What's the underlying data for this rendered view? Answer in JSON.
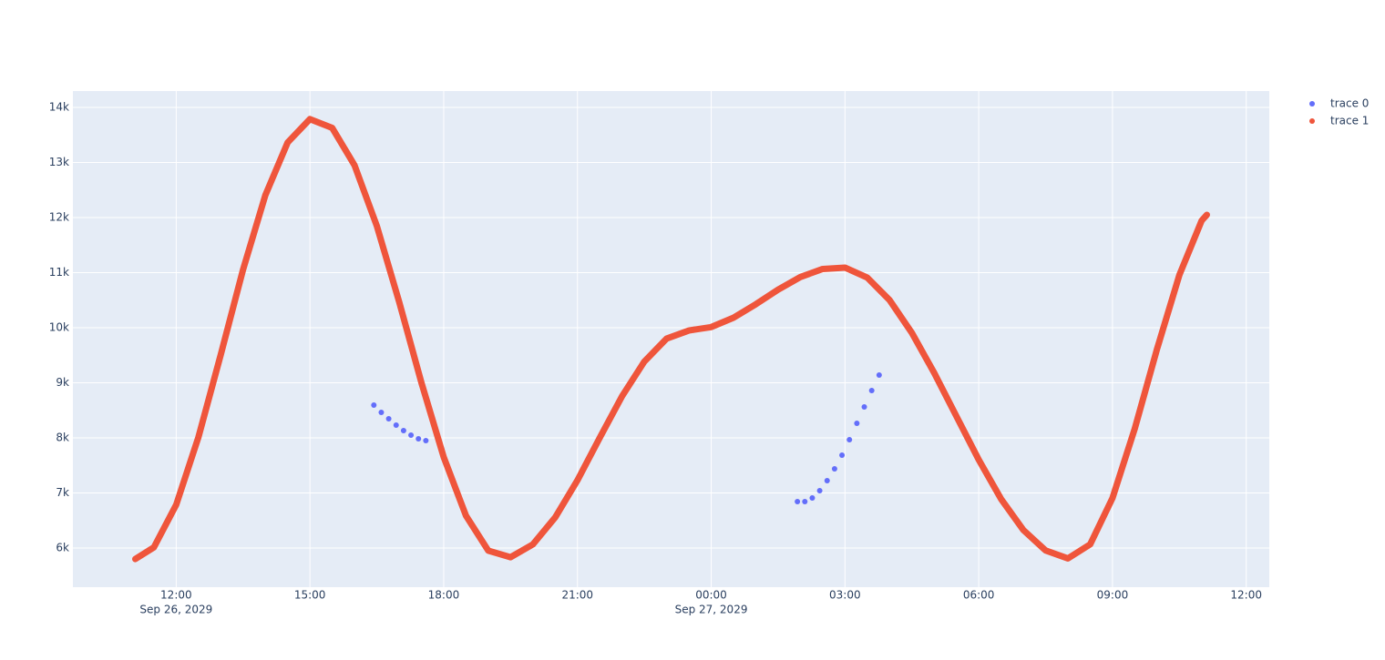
{
  "chart_data": {
    "type": "scatter",
    "xlim": [
      "2029-09-26T09:41",
      "2029-09-27T12:31"
    ],
    "ylim": [
      5289,
      14298
    ],
    "grid": true,
    "legend": "right",
    "xticks": [
      {
        "value": "2029-09-26T12:00",
        "label": "12:00",
        "date": "Sep 26, 2029"
      },
      {
        "value": "2029-09-26T15:00",
        "label": "15:00"
      },
      {
        "value": "2029-09-26T18:00",
        "label": "18:00"
      },
      {
        "value": "2029-09-26T21:00",
        "label": "21:00"
      },
      {
        "value": "2029-09-27T00:00",
        "label": "00:00",
        "date": "Sep 27, 2029"
      },
      {
        "value": "2029-09-27T03:00",
        "label": "03:00"
      },
      {
        "value": "2029-09-27T06:00",
        "label": "06:00"
      },
      {
        "value": "2029-09-27T09:00",
        "label": "09:00"
      },
      {
        "value": "2029-09-27T12:00",
        "label": "12:00"
      }
    ],
    "yticks": [
      {
        "value": 6000,
        "label": "6k"
      },
      {
        "value": 7000,
        "label": "7k"
      },
      {
        "value": 8000,
        "label": "8k"
      },
      {
        "value": 9000,
        "label": "9k"
      },
      {
        "value": 10000,
        "label": "10k"
      },
      {
        "value": 11000,
        "label": "11k"
      },
      {
        "value": 12000,
        "label": "12k"
      },
      {
        "value": 13000,
        "label": "13k"
      },
      {
        "value": 14000,
        "label": "14k"
      }
    ],
    "series": [
      {
        "name": "trace 0",
        "color": "#636efa",
        "mode": "markers",
        "x": [
          "2029-09-26T16:26",
          "2029-09-26T16:36",
          "2029-09-26T16:46",
          "2029-09-26T16:56",
          "2029-09-26T17:06",
          "2029-09-26T17:16",
          "2029-09-26T17:26",
          "2029-09-26T17:36",
          "2029-09-27T01:56",
          "2029-09-27T02:06",
          "2029-09-27T02:16",
          "2029-09-27T02:26",
          "2029-09-27T02:36",
          "2029-09-27T02:46",
          "2029-09-27T02:56",
          "2029-09-27T03:06",
          "2029-09-27T03:16",
          "2029-09-27T03:26",
          "2029-09-27T03:36",
          "2029-09-27T03:46"
        ],
        "values": [
          8595,
          8463,
          8347,
          8231,
          8132,
          8049,
          7983,
          7950,
          6843,
          6843,
          6909,
          7041,
          7223,
          7438,
          7686,
          7967,
          8264,
          8562,
          8859,
          9140
        ]
      },
      {
        "name": "trace 1",
        "color": "#EF553B",
        "mode": "lines",
        "x": [
          "2029-09-26T11:05",
          "2029-09-26T11:30",
          "2029-09-26T12:00",
          "2029-09-26T12:30",
          "2029-09-26T13:00",
          "2029-09-26T13:30",
          "2029-09-26T14:00",
          "2029-09-26T14:30",
          "2029-09-26T15:00",
          "2029-09-26T15:30",
          "2029-09-26T16:00",
          "2029-09-26T16:30",
          "2029-09-26T17:00",
          "2029-09-26T17:30",
          "2029-09-26T18:00",
          "2029-09-26T18:30",
          "2029-09-26T19:00",
          "2029-09-26T19:30",
          "2029-09-26T20:00",
          "2029-09-26T20:30",
          "2029-09-26T21:00",
          "2029-09-26T21:30",
          "2029-09-26T22:00",
          "2029-09-26T22:30",
          "2029-09-26T23:00",
          "2029-09-26T23:30",
          "2029-09-27T00:00",
          "2029-09-27T00:30",
          "2029-09-27T01:00",
          "2029-09-27T01:30",
          "2029-09-27T02:00",
          "2029-09-27T02:30",
          "2029-09-27T03:00",
          "2029-09-27T03:30",
          "2029-09-27T04:00",
          "2029-09-27T04:30",
          "2029-09-27T05:00",
          "2029-09-27T05:30",
          "2029-09-27T06:00",
          "2029-09-27T06:30",
          "2029-09-27T07:00",
          "2029-09-27T07:30",
          "2029-09-27T08:00",
          "2029-09-27T08:30",
          "2029-09-27T09:00",
          "2029-09-27T09:30",
          "2029-09-27T10:00",
          "2029-09-27T10:30",
          "2029-09-27T11:00",
          "2029-09-27T11:07"
        ],
        "values": [
          5800,
          6012,
          6784,
          8016,
          9512,
          11056,
          12408,
          13364,
          13788,
          13628,
          12950,
          11849,
          10472,
          9004,
          7651,
          6586,
          5952,
          5833,
          6066,
          6555,
          7230,
          8003,
          8756,
          9386,
          9803,
          9950,
          10012,
          10182,
          10426,
          10691,
          10921,
          11067,
          11092,
          10910,
          10502,
          9907,
          9182,
          8391,
          7603,
          6892,
          6328,
          5955,
          5811,
          6067,
          6907,
          8169,
          9616,
          10957,
          11945,
          12050
        ]
      }
    ]
  }
}
